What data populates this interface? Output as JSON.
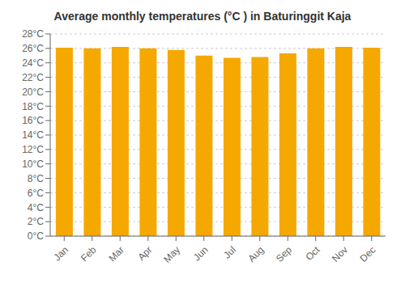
{
  "chart_data": {
    "type": "bar",
    "title": "Average monthly temperatures (°C ) in Baturinggit Kaja",
    "categories": [
      "Jan",
      "Feb",
      "Mar",
      "Apr",
      "May",
      "Jun",
      "Jul",
      "Aug",
      "Sep",
      "Oct",
      "Nov",
      "Dec"
    ],
    "values": [
      26.1,
      26.0,
      26.2,
      26.0,
      25.8,
      25.0,
      24.7,
      24.8,
      25.3,
      26.0,
      26.2,
      26.1
    ],
    "color": "#F5A800",
    "ylim": [
      0,
      28
    ],
    "yticks": [
      {
        "value": 0,
        "label": "0°C"
      },
      {
        "value": 2,
        "label": "2°C"
      },
      {
        "value": 4,
        "label": "4°C"
      },
      {
        "value": 6,
        "label": "6°C"
      },
      {
        "value": 8,
        "label": "8°C"
      },
      {
        "value": 10,
        "label": "10°C"
      },
      {
        "value": 12,
        "label": "12°C"
      },
      {
        "value": 14,
        "label": "14°C"
      },
      {
        "value": 16,
        "label": "16°C"
      },
      {
        "value": 18,
        "label": "18°C"
      },
      {
        "value": 20,
        "label": "20°C"
      },
      {
        "value": 22,
        "label": "22°C"
      },
      {
        "value": 24,
        "label": "24°C"
      },
      {
        "value": 26,
        "label": "26°C"
      },
      {
        "value": 28,
        "label": "28°C"
      }
    ],
    "grid": true
  }
}
